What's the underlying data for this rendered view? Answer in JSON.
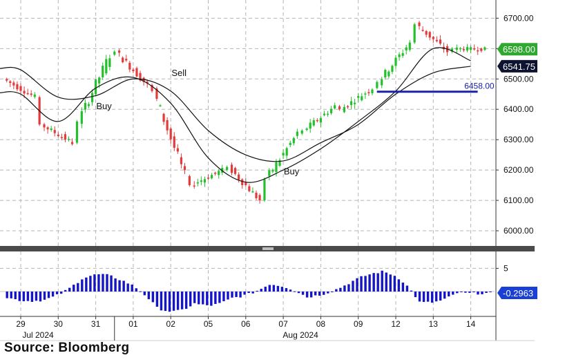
{
  "source_label": "Source:  Bloomberg",
  "colors": {
    "up": "#22c02a",
    "down": "#e23b3b",
    "ma": "#111111",
    "level_line": "#1a22a8",
    "histogram": "#1515c8",
    "grid": "#b5b5b5",
    "last_price_badge": "#2ea82e",
    "ma_badge": "#0d1330",
    "osc_badge": "#1a3fd4"
  },
  "chart_data": [
    {
      "type": "candlestick",
      "title": "",
      "y_axis_side": "right",
      "ylim": [
        5950,
        6760
      ],
      "y_ticks": [
        6000,
        6100,
        6200,
        6300,
        6400,
        6500,
        6600,
        6700
      ],
      "y_tick_labels": [
        "6000.00",
        "6100.00",
        "6200.00",
        "6300.00",
        "6400.00",
        "6500.00",
        "6600.00",
        "6700.00"
      ],
      "grid": true,
      "days": [
        {
          "label": "29",
          "open": 6500,
          "close": 6440
        },
        {
          "label": "30",
          "open": 6350,
          "close": 6290
        },
        {
          "label": "31",
          "open": 6360,
          "close": 6580
        },
        {
          "label": "01",
          "open": 6590,
          "close": 6480
        },
        {
          "label": "02",
          "open": 6460,
          "close": 6180
        },
        {
          "label": "05",
          "open": 6150,
          "close": 6200
        },
        {
          "label": "06",
          "open": 6210,
          "close": 6100
        },
        {
          "label": "07",
          "open": 6170,
          "close": 6320
        },
        {
          "label": "08",
          "open": 6330,
          "close": 6410
        },
        {
          "label": "09",
          "open": 6400,
          "close": 6470
        },
        {
          "label": "12",
          "open": 6490,
          "close": 6620
        },
        {
          "label": "13",
          "open": 6680,
          "close": 6590
        },
        {
          "label": "14",
          "open": 6600,
          "close": 6598
        }
      ],
      "moving_averages": {
        "fast": [
          6450,
          6360,
          6470,
          6505,
          6420,
          6240,
          6160,
          6200,
          6270,
          6360,
          6460,
          6600,
          6560
        ],
        "slow": [
          6530,
          6440,
          6445,
          6500,
          6460,
          6330,
          6250,
          6230,
          6290,
          6350,
          6450,
          6520,
          6541.75
        ]
      },
      "last_price": {
        "value": 6598.0,
        "label": "6598.00"
      },
      "ma_value": {
        "value": 6541.75,
        "label": "6541.75"
      },
      "level_line": {
        "value": 6458.0,
        "label": "6458.00",
        "from_day": "09",
        "to_day": "14"
      },
      "annotations": [
        {
          "text": "Buy",
          "day": "31",
          "value": 6400
        },
        {
          "text": "Sell",
          "day": "02",
          "value": 6510
        },
        {
          "text": "Buy",
          "day": "07",
          "value": 6185
        }
      ]
    },
    {
      "type": "bar",
      "title": "",
      "y_axis_side": "right",
      "ylim": [
        -7,
        7
      ],
      "y_ticks": [
        5
      ],
      "y_tick_labels": [
        "5"
      ],
      "day_values": [
        {
          "label": "29",
          "value": -1.3
        },
        {
          "label": "30",
          "value": -1.8
        },
        {
          "label": "31",
          "value": 2.8
        },
        {
          "label": "01",
          "value": 2.6
        },
        {
          "label": "02",
          "value": -3.5
        },
        {
          "label": "05",
          "value": -2.6
        },
        {
          "label": "06",
          "value": -1.4
        },
        {
          "label": "07",
          "value": 1.6
        },
        {
          "label": "08",
          "value": -1.2
        },
        {
          "label": "09",
          "value": 1.3
        },
        {
          "label": "12",
          "value": 4.3
        },
        {
          "label": "13",
          "value": -2.3
        },
        {
          "label": "14",
          "value": -0.2963
        }
      ],
      "last_value": {
        "value": -0.2963,
        "label": "-0.2963"
      }
    }
  ],
  "x_axis": {
    "day_labels": [
      "29",
      "30",
      "31",
      "01",
      "02",
      "05",
      "06",
      "07",
      "08",
      "09",
      "12",
      "13",
      "14"
    ],
    "month_labels": [
      {
        "text": "Jul 2024",
        "day": "29"
      },
      {
        "text": "Aug 2024",
        "day": "07"
      }
    ]
  }
}
